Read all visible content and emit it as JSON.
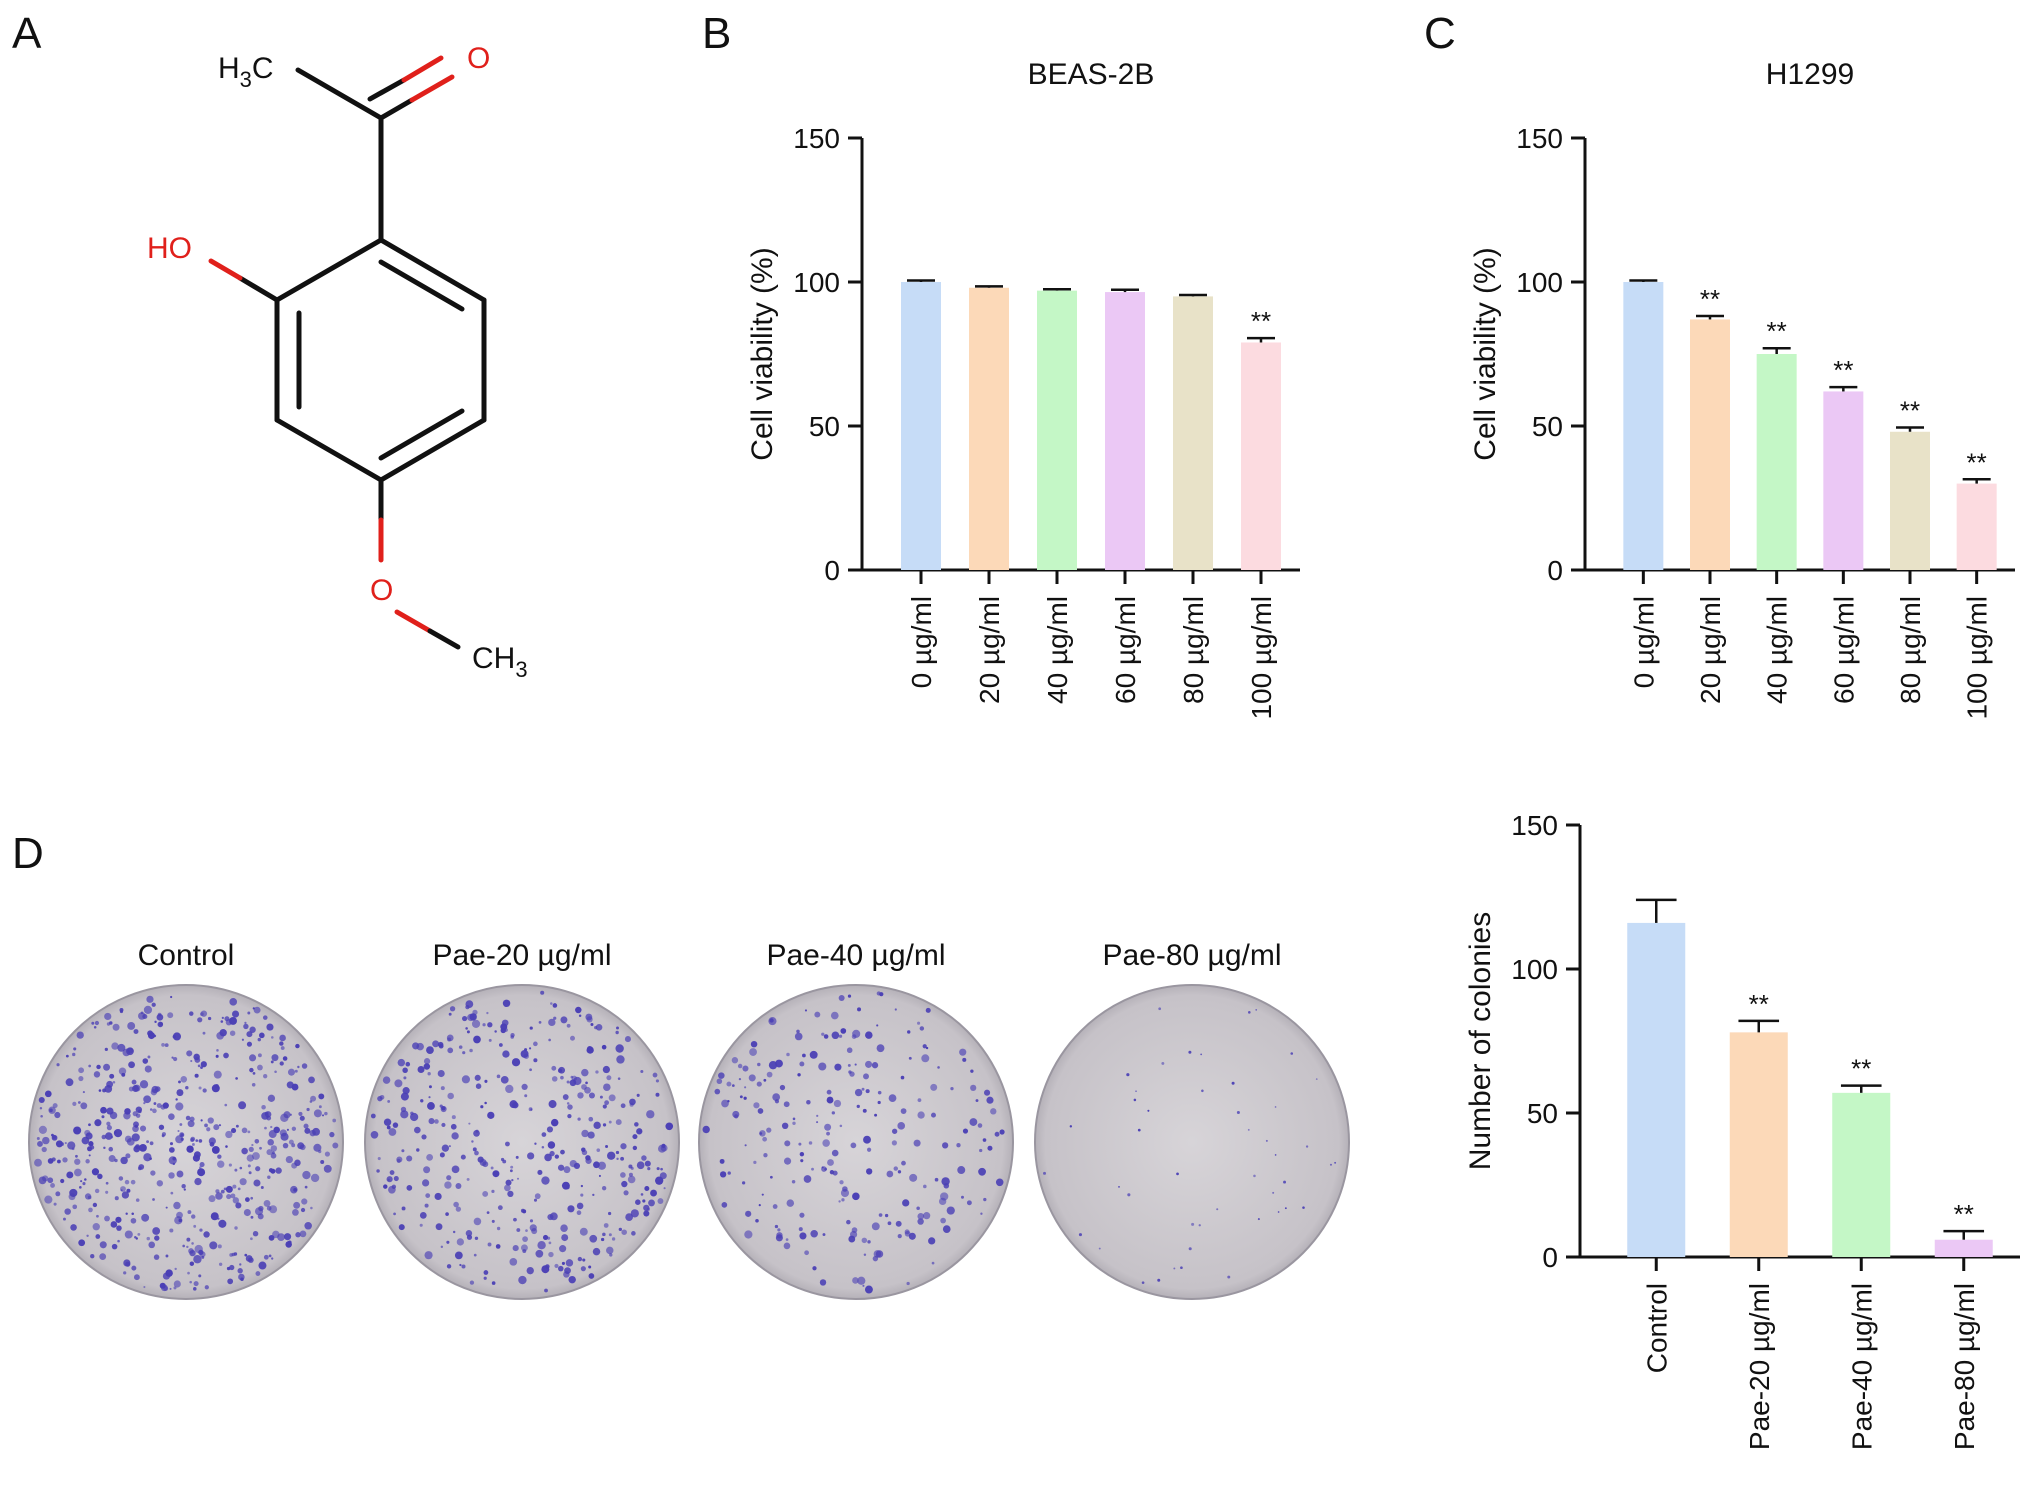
{
  "panels": {
    "a": "A",
    "b": "B",
    "c": "C",
    "d": "D"
  },
  "molecule": {
    "labels": {
      "acetyl_methyl": "H3C",
      "carbonyl_oxygen": "O",
      "hydroxyl": "HO",
      "ether_oxygen": "O",
      "methoxy_methyl": "CH3"
    },
    "colors": {
      "bond": "#111111",
      "heteroatom": "#e0201b"
    }
  },
  "dishes": {
    "labels": [
      "Control",
      "Pae-20 µg/ml",
      "Pae-40 µg/ml",
      "Pae-80 µg/ml"
    ],
    "colony_density": [
      1.0,
      0.72,
      0.42,
      0.04
    ],
    "stain_color": "#4a3fb5",
    "plate_color": "#c9c6cc"
  },
  "chart_data": [
    {
      "id": "B",
      "type": "bar",
      "title": "BEAS-2B",
      "ylabel": "Cell viability (%)",
      "xlabel": "",
      "ylim": [
        0,
        150
      ],
      "yticks": [
        0,
        50,
        100,
        150
      ],
      "categories": [
        "0 µg/ml",
        "20 µg/ml",
        "40 µg/ml",
        "60 µg/ml",
        "80 µg/ml",
        "100 µg/ml"
      ],
      "values": [
        100,
        98,
        97,
        96.5,
        95,
        79
      ],
      "errors": [
        0.5,
        0.5,
        0.5,
        0.8,
        0.5,
        1.5
      ],
      "significance": [
        "",
        "",
        "",
        "",
        "",
        "**"
      ],
      "colors": [
        "#c6dcf7",
        "#fcd9b8",
        "#c4f7c6",
        "#ebc8f5",
        "#e8e2c8",
        "#fcdbe0"
      ],
      "grid": false,
      "legend": "none"
    },
    {
      "id": "C",
      "type": "bar",
      "title": "H1299",
      "ylabel": "Cell viability (%)",
      "xlabel": "",
      "ylim": [
        0,
        150
      ],
      "yticks": [
        0,
        50,
        100,
        150
      ],
      "categories": [
        "0 µg/ml",
        "20 µg/ml",
        "40 µg/ml",
        "60 µg/ml",
        "80 µg/ml",
        "100 µg/ml"
      ],
      "values": [
        100,
        87,
        75,
        62,
        48,
        30
      ],
      "errors": [
        0.5,
        1.2,
        2.0,
        1.5,
        1.5,
        1.5
      ],
      "significance": [
        "",
        "**",
        "**",
        "**",
        "**",
        "**"
      ],
      "colors": [
        "#c6dcf7",
        "#fcd9b8",
        "#c4f7c6",
        "#ebc8f5",
        "#e8e2c8",
        "#fcdbe0"
      ],
      "grid": false,
      "legend": "none"
    },
    {
      "id": "D",
      "type": "bar",
      "title": "",
      "ylabel": "Number of colonies",
      "xlabel": "",
      "ylim": [
        0,
        150
      ],
      "yticks": [
        0,
        50,
        100,
        150
      ],
      "categories": [
        "Control",
        "Pae-20 µg/ml",
        "Pae-40 µg/ml",
        "Pae-80 µg/ml"
      ],
      "values": [
        116,
        78,
        57,
        6
      ],
      "errors": [
        8,
        4,
        2.5,
        3
      ],
      "significance": [
        "",
        "**",
        "**",
        "**"
      ],
      "colors": [
        "#c6dcf7",
        "#fcd9b8",
        "#c4f7c6",
        "#ebc8f5"
      ],
      "grid": false,
      "legend": "none"
    }
  ]
}
